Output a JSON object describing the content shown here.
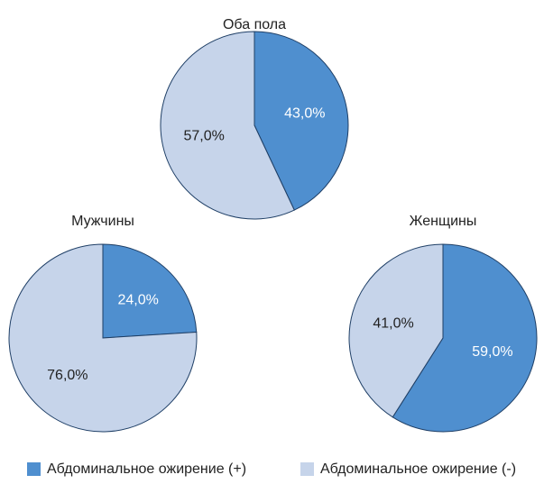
{
  "chart_data": [
    {
      "type": "pie",
      "title": "Оба пола",
      "values": [
        43.0,
        57.0
      ],
      "value_labels": [
        "43,0%",
        "57,0%"
      ]
    },
    {
      "type": "pie",
      "title": "Мужчины",
      "values": [
        24.0,
        76.0
      ],
      "value_labels": [
        "24,0%",
        "76,0%"
      ]
    },
    {
      "type": "pie",
      "title": "Женщины",
      "values": [
        59.0,
        41.0
      ],
      "value_labels": [
        "59,0%",
        "41,0%"
      ]
    }
  ],
  "legend": {
    "labels": [
      "Абдоминальное ожирение (+)",
      "Абдоминальное ожирение (-)"
    ],
    "colors": [
      "#4f8fcf",
      "#c6d4ea"
    ]
  }
}
